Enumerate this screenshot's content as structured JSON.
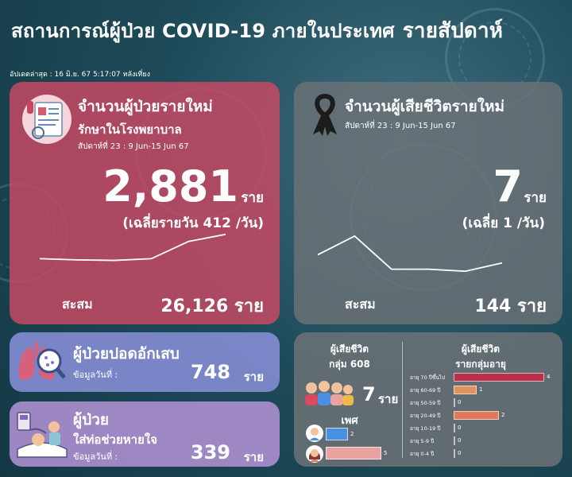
{
  "header": {
    "title": "สถานการณ์ผู้ป่วย COVID-19 ภายในประเทศ",
    "title_suffix": "รายสัปดาห์",
    "updated": "อัปเดตล่าสุด : 16 มิ.ย. 67 5:17:07 หลังเที่ยง"
  },
  "new_cases": {
    "title": "จำนวนผู้ป่วยรายใหม่",
    "subtitle": "รักษาในโรงพยาบาล",
    "week": "สัปดาห์ที่ 23 : 9 Jun-15 Jun 67",
    "value": "2,881",
    "unit": "ราย",
    "average": "(เฉลี่ยรายวัน 412 /วัน)",
    "cumulative_label": "สะสม",
    "cumulative_value": "26,126 ราย",
    "trend": [
      0.1,
      0.06,
      0.04,
      0.1,
      0.7,
      0.95
    ]
  },
  "new_deaths": {
    "title": "จำนวนผู้เสียชีวิตรายใหม่",
    "week": "สัปดาห์ที่ 23 : 9 Jun-15 Jun 67",
    "value": "7",
    "unit": "ราย",
    "average": "(เฉลี่ย 1 /วัน)",
    "cumulative_label": "สะสม",
    "cumulative_value": "144 ราย",
    "trend": [
      0.55,
      1.0,
      0.2,
      0.2,
      0.15,
      0.35
    ]
  },
  "pneumonia": {
    "title": "ผู้ป่วยปอดอักเสบ",
    "date_label": "ข้อมูลวันที่ :",
    "value": "748",
    "unit": "ราย"
  },
  "ventilator": {
    "title": "ผู้ป่วย",
    "subtitle": "ใส่ท่อช่วยหายใจ",
    "date_label": "ข้อมูลวันที่ :",
    "value": "339",
    "unit": "ราย"
  },
  "deaths_608": {
    "title_line1": "ผู้เสียชีวิต",
    "title_line2": "กลุ่ม 608",
    "value": "7",
    "unit": "ราย"
  },
  "deaths_gender": {
    "title": "เพศ",
    "male": 2,
    "female": 5,
    "male_color": "#4a90e2",
    "female_color": "#e8a3a0"
  },
  "deaths_age": {
    "title_line1": "ผู้เสียชีวิต",
    "title_line2": "รายกลุ่มอายุ",
    "max": 4,
    "groups": [
      {
        "label": "อายุ 70 ปีขึ้นไป",
        "value": 4,
        "color": "#b8304c"
      },
      {
        "label": "อายุ 60-69 ปี",
        "value": 1,
        "color": "#e0935e"
      },
      {
        "label": "อายุ 50-59 ปี",
        "value": 0,
        "color": "#e0935e"
      },
      {
        "label": "อายุ 20-49 ปี",
        "value": 2,
        "color": "#e07a5a"
      },
      {
        "label": "อายุ 10-19 ปี",
        "value": 0,
        "color": "#e07a5a"
      },
      {
        "label": "อายุ 5-9 ปี",
        "value": 0,
        "color": "#e07a5a"
      },
      {
        "label": "อายุ 0-4 ปี",
        "value": 0,
        "color": "#e07a5a"
      }
    ]
  }
}
